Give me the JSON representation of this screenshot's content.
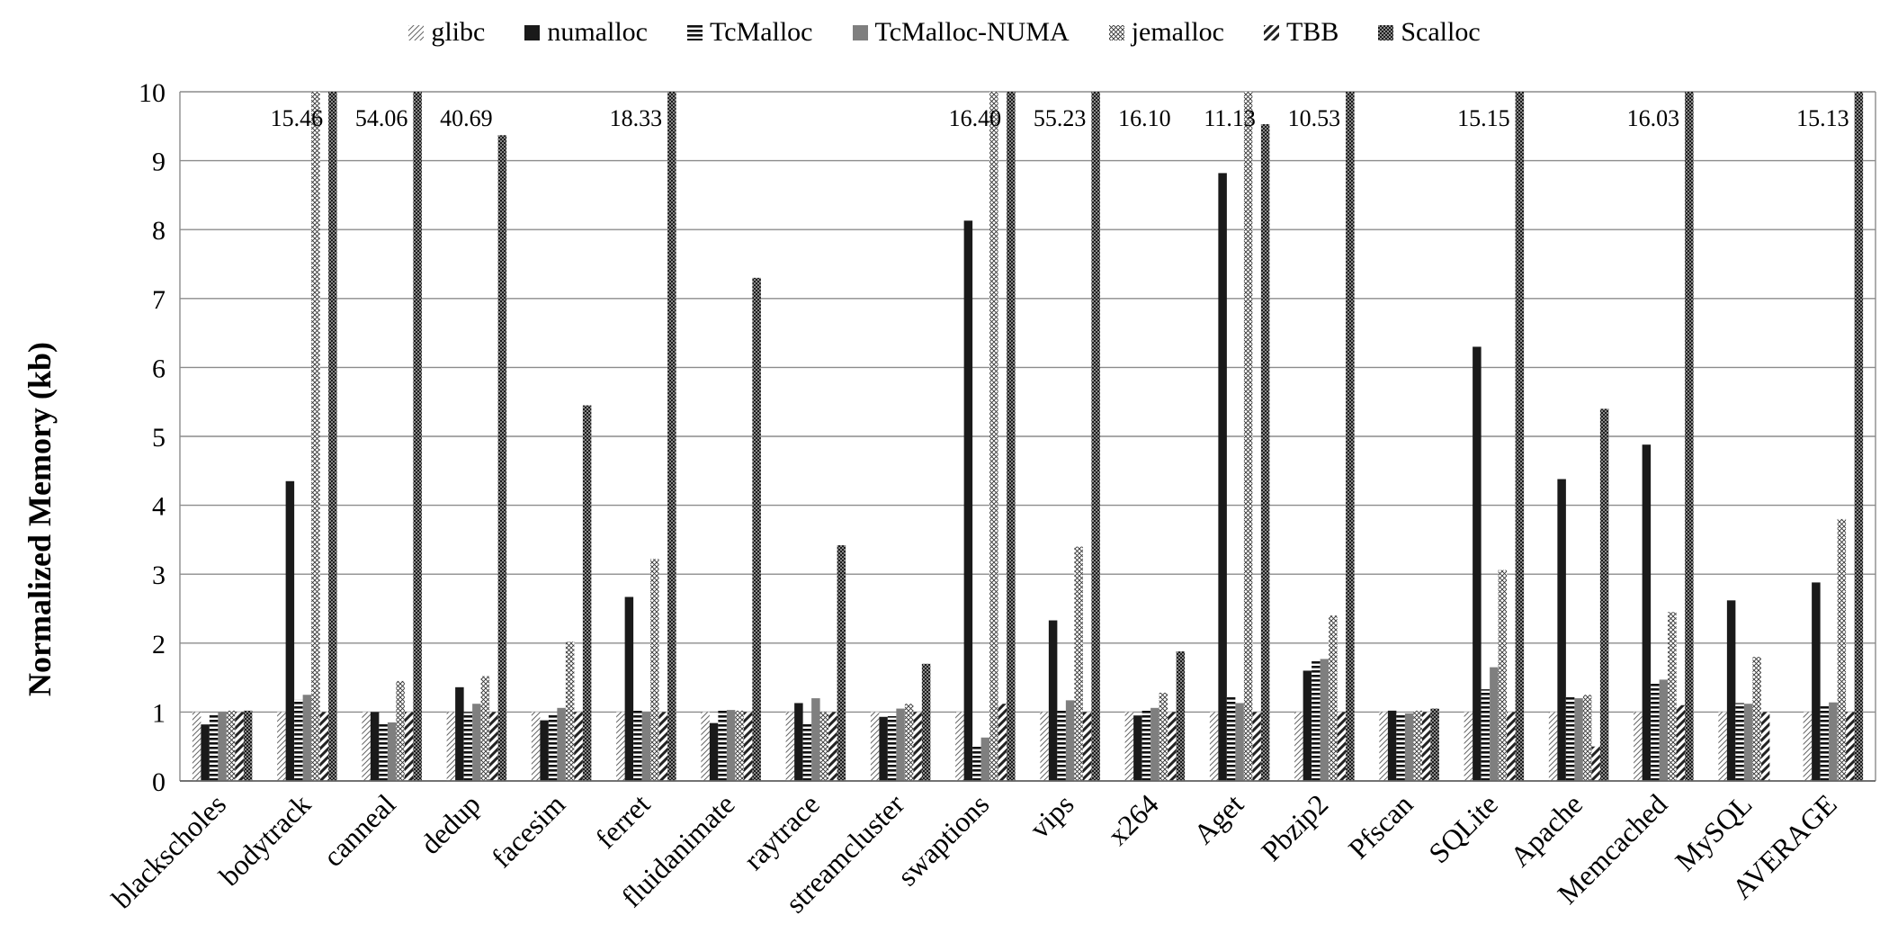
{
  "chart_data": {
    "type": "bar",
    "title": "",
    "xlabel": "",
    "ylabel": "Normalized Memory (kb)",
    "ylim": [
      0,
      10
    ],
    "yticks": [
      "0",
      "1",
      "2",
      "3",
      "4",
      "5",
      "6",
      "7",
      "8",
      "9",
      "10"
    ],
    "grid": true,
    "legend_position": "top",
    "categories": [
      "blackscholes",
      "bodytrack",
      "canneal",
      "dedup",
      "facesim",
      "ferret",
      "fluidanimate",
      "raytrace",
      "streamcluster",
      "swaptions",
      "vips",
      "x264",
      "Aget",
      "Pbzip2",
      "Pfscan",
      "SQLite",
      "Apache",
      "Memcached",
      "MySQL",
      "AVERAGE"
    ],
    "series": [
      {
        "name": "glibc",
        "pattern": "diag-light",
        "values": [
          1,
          1,
          1,
          1,
          1,
          1,
          1,
          1,
          1,
          1,
          1,
          1,
          1,
          1,
          1,
          1,
          1,
          1,
          1,
          1
        ]
      },
      {
        "name": "numalloc",
        "pattern": "solid-black",
        "values": [
          0.82,
          4.35,
          1.0,
          1.36,
          0.88,
          2.67,
          0.84,
          1.13,
          0.93,
          8.13,
          2.33,
          0.95,
          8.82,
          1.6,
          1.02,
          6.3,
          4.38,
          4.88,
          2.62,
          2.88
        ]
      },
      {
        "name": "TcMalloc",
        "pattern": "horizontal-lines",
        "values": [
          0.98,
          1.18,
          0.83,
          1.0,
          0.98,
          1.02,
          1.02,
          0.83,
          0.94,
          0.52,
          1.02,
          1.02,
          1.22,
          1.75,
          0.98,
          1.33,
          1.22,
          1.43,
          1.13,
          1.09
        ]
      },
      {
        "name": "TcMalloc-NUMA",
        "pattern": "solid-gray",
        "values": [
          1.0,
          1.25,
          0.85,
          1.12,
          1.06,
          1.0,
          1.03,
          1.2,
          1.05,
          0.63,
          1.17,
          1.06,
          1.13,
          1.77,
          0.98,
          1.65,
          1.2,
          1.47,
          1.12,
          1.14
        ]
      },
      {
        "name": "jemalloc",
        "pattern": "crosshatch-dense",
        "values": [
          1.02,
          10,
          1.45,
          1.52,
          2.02,
          3.22,
          1.02,
          1.0,
          1.12,
          10,
          3.4,
          1.28,
          10,
          2.4,
          1.02,
          3.06,
          1.25,
          2.45,
          1.8,
          3.8
        ]
      },
      {
        "name": "TBB",
        "pattern": "diag-bold",
        "values": [
          1.0,
          1.0,
          1.0,
          1.0,
          1.0,
          1.0,
          1.0,
          1.0,
          1.0,
          1.12,
          1.0,
          1.0,
          1.0,
          1.0,
          1.0,
          1.0,
          0.5,
          1.1,
          1.0,
          1.0
        ]
      },
      {
        "name": "Scalloc",
        "pattern": "checker-dark",
        "values": [
          1.02,
          10,
          10,
          9.37,
          5.45,
          10,
          7.3,
          3.42,
          1.7,
          10,
          10,
          1.88,
          9.53,
          10,
          1.05,
          10,
          5.4,
          10,
          0,
          10
        ]
      }
    ],
    "overflow_labels": [
      {
        "category": "bodytrack",
        "text": "15.46"
      },
      {
        "category": "canneal",
        "text": "54.06"
      },
      {
        "category": "dedup",
        "text": "40.69"
      },
      {
        "category": "ferret",
        "text": "18.33"
      },
      {
        "category": "swaptions",
        "text": "16.40"
      },
      {
        "category": "vips",
        "text": "55.23"
      },
      {
        "category": "x264",
        "text": "16.10"
      },
      {
        "category": "Aget",
        "text": "11.13"
      },
      {
        "category": "Pbzip2",
        "text": "10.53"
      },
      {
        "category": "SQLite",
        "text": "15.15"
      },
      {
        "category": "Memcached",
        "text": "16.03"
      },
      {
        "category": "AVERAGE",
        "text": "15.13"
      }
    ]
  }
}
